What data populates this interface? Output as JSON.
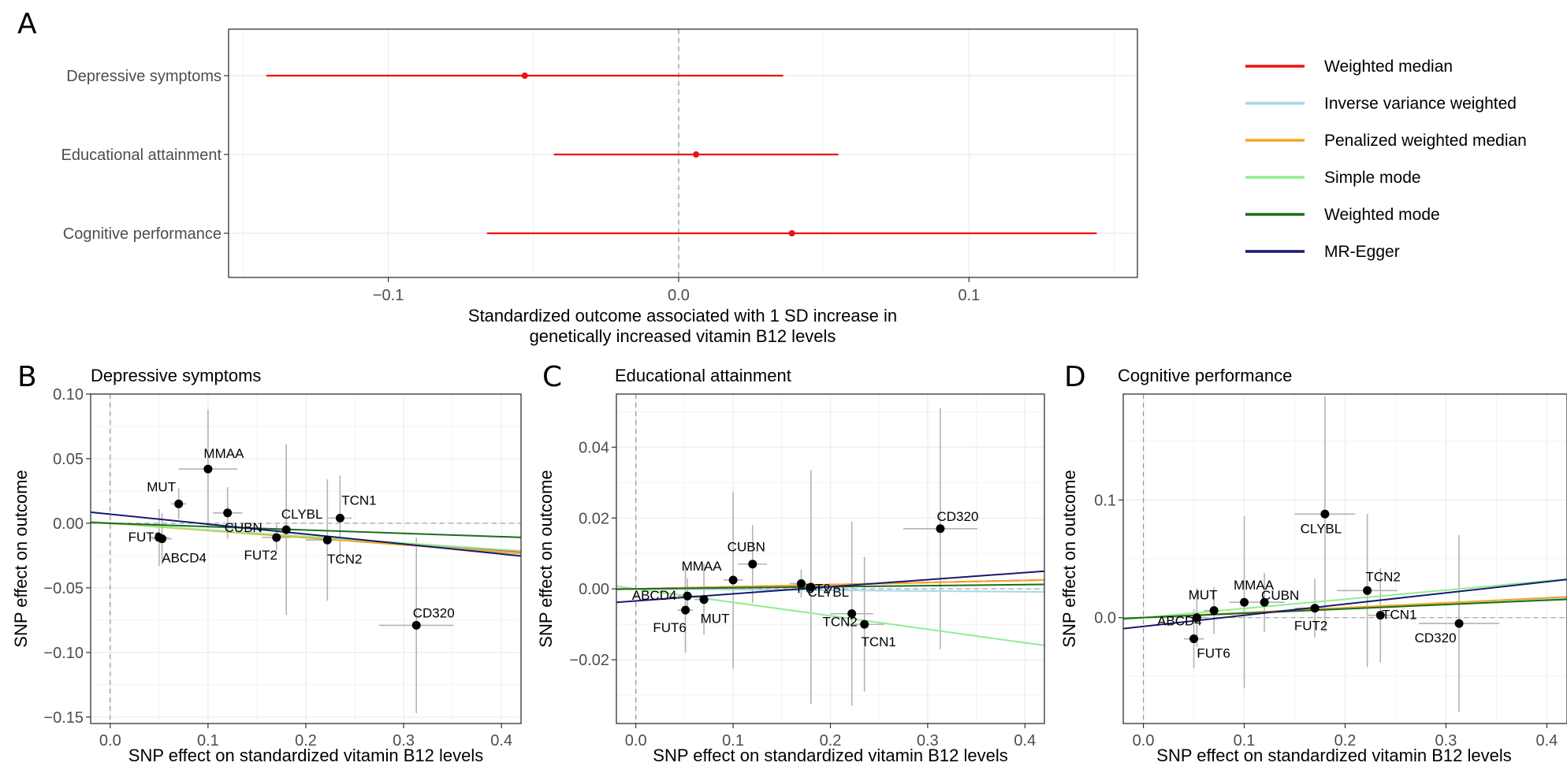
{
  "panel_letters": {
    "a": "A",
    "b": "B",
    "c": "C",
    "d": "D"
  },
  "legend": {
    "items": [
      {
        "key": "wmed",
        "label": "Weighted median",
        "color": "#ee1111"
      },
      {
        "key": "ivw",
        "label": "Inverse variance weighted",
        "color": "#a6d8ea"
      },
      {
        "key": "pwm",
        "label": "Penalized weighted median",
        "color": "#f5a623"
      },
      {
        "key": "smode",
        "label": "Simple mode",
        "color": "#90ee90"
      },
      {
        "key": "wmode",
        "label": "Weighted mode",
        "color": "#1a6e1a"
      },
      {
        "key": "egger",
        "label": "MR-Egger",
        "color": "#191970"
      }
    ]
  },
  "chart_data": [
    {
      "type": "forest",
      "xlabel": "Standardized outcome associated with 1 SD increase in genetically increased vitamin B12 levels",
      "xlim": [
        -0.155,
        0.158
      ],
      "xticks": [
        -0.1,
        0.0,
        0.1
      ],
      "xtick_labels": [
        "−0.1",
        "0.0",
        "0.1"
      ],
      "method": "Weighted median",
      "rows": [
        {
          "label": "Depressive symptoms",
          "estimate": -0.053,
          "lower": -0.142,
          "upper": 0.036
        },
        {
          "label": "Educational attainment",
          "estimate": 0.006,
          "lower": -0.043,
          "upper": 0.055
        },
        {
          "label": "Cognitive performance",
          "estimate": 0.039,
          "lower": -0.066,
          "upper": 0.144
        }
      ]
    },
    {
      "type": "scatter",
      "title": "Depressive symptoms",
      "xlabel": "SNP effect on standardized vitamin B12 levels",
      "ylabel": "SNP effect on outcome",
      "xlim": [
        -0.02,
        0.42
      ],
      "ylim": [
        -0.155,
        0.1
      ],
      "xticks": [
        0.0,
        0.1,
        0.2,
        0.3,
        0.4
      ],
      "xtick_labels": [
        "0.0",
        "0.1",
        "0.2",
        "0.3",
        "0.4"
      ],
      "yticks": [
        0.1,
        0.05,
        0.0,
        -0.05,
        -0.1,
        -0.15
      ],
      "ytick_labels": [
        "0.10",
        "0.05",
        "0.00",
        "−0.05",
        "−0.10",
        "−0.15"
      ],
      "points": [
        {
          "label": "MMAA",
          "x": 0.1,
          "y": 0.042,
          "xerr": 0.03,
          "yerr": 0.046
        },
        {
          "label": "MUT",
          "x": 0.07,
          "y": 0.015,
          "xerr": 0.008,
          "yerr": 0.012
        },
        {
          "label": "CUBN",
          "x": 0.12,
          "y": 0.008,
          "xerr": 0.015,
          "yerr": 0.02
        },
        {
          "label": "FUT6",
          "x": 0.05,
          "y": -0.011,
          "xerr": 0.01,
          "yerr": 0.022
        },
        {
          "label": "ABCD4",
          "x": 0.053,
          "y": -0.012,
          "xerr": 0.01,
          "yerr": 0.02
        },
        {
          "label": "FUT2",
          "x": 0.17,
          "y": -0.011,
          "xerr": 0.015,
          "yerr": 0.01
        },
        {
          "label": "CLYBL",
          "x": 0.18,
          "y": -0.005,
          "xerr": 0.012,
          "yerr": 0.066
        },
        {
          "label": "TCN1",
          "x": 0.235,
          "y": 0.004,
          "xerr": 0.012,
          "yerr": 0.033
        },
        {
          "label": "TCN2",
          "x": 0.222,
          "y": -0.013,
          "xerr": 0.022,
          "yerr": 0.047
        },
        {
          "label": "CD320",
          "x": 0.313,
          "y": -0.079,
          "xerr": 0.038,
          "yerr": 0.068
        }
      ],
      "lines": [
        {
          "method": "Weighted median",
          "slope": -0.053,
          "intercept": 0
        },
        {
          "method": "Inverse variance weighted",
          "slope": -0.055,
          "intercept": 0
        },
        {
          "method": "Penalized weighted median",
          "slope": -0.056,
          "intercept": 0
        },
        {
          "method": "Simple mode",
          "slope": -0.051,
          "intercept": 0
        },
        {
          "method": "Weighted mode",
          "slope": -0.026,
          "intercept": 0
        },
        {
          "method": "MR-Egger",
          "slope": -0.077,
          "intercept": 0.007
        }
      ]
    },
    {
      "type": "scatter",
      "title": "Educational attainment",
      "xlabel": "SNP effect on standardized vitamin B12 levels",
      "ylabel": "SNP effect on outcome",
      "xlim": [
        -0.02,
        0.42
      ],
      "ylim": [
        -0.038,
        0.055
      ],
      "xticks": [
        0.0,
        0.1,
        0.2,
        0.3,
        0.4
      ],
      "xtick_labels": [
        "0.0",
        "0.1",
        "0.2",
        "0.3",
        "0.4"
      ],
      "yticks": [
        0.04,
        0.02,
        0.0,
        -0.02
      ],
      "ytick_labels": [
        "0.04",
        "0.02",
        "0.00",
        "−0.02"
      ],
      "points": [
        {
          "label": "CUBN",
          "x": 0.12,
          "y": 0.007,
          "xerr": 0.015,
          "yerr": 0.011
        },
        {
          "label": "MMAA",
          "x": 0.1,
          "y": 0.0025,
          "xerr": 0.01,
          "yerr": 0.025
        },
        {
          "label": "FUT2",
          "x": 0.17,
          "y": 0.0015,
          "xerr": 0.012,
          "yerr": 0.004
        },
        {
          "label": "ABCD4",
          "x": 0.053,
          "y": -0.002,
          "xerr": 0.01,
          "yerr": 0.005
        },
        {
          "label": "FUT6",
          "x": 0.051,
          "y": -0.006,
          "xerr": 0.008,
          "yerr": 0.012
        },
        {
          "label": "MUT",
          "x": 0.07,
          "y": -0.003,
          "xerr": 0.01,
          "yerr": 0.01
        },
        {
          "label": "CLYBL",
          "x": 0.18,
          "y": 0.0005,
          "xerr": 0.012,
          "yerr": 0.033
        },
        {
          "label": "TCN2",
          "x": 0.222,
          "y": -0.007,
          "xerr": 0.022,
          "yerr": 0.026
        },
        {
          "label": "TCN1",
          "x": 0.235,
          "y": -0.01,
          "xerr": 0.02,
          "yerr": 0.019
        },
        {
          "label": "CD320",
          "x": 0.313,
          "y": 0.017,
          "xerr": 0.038,
          "yerr": 0.034
        }
      ],
      "lines": [
        {
          "method": "Weighted median",
          "slope": 0.006,
          "intercept": 0
        },
        {
          "method": "Inverse variance weighted",
          "slope": -0.002,
          "intercept": 0
        },
        {
          "method": "Penalized weighted median",
          "slope": 0.006,
          "intercept": 0
        },
        {
          "method": "Simple mode",
          "slope": -0.038,
          "intercept": 0
        },
        {
          "method": "Weighted mode",
          "slope": 0.003,
          "intercept": 0
        },
        {
          "method": "MR-Egger",
          "slope": 0.02,
          "intercept": -0.0034
        }
      ]
    },
    {
      "type": "scatter",
      "title": "Cognitive performance",
      "xlabel": "SNP effect on standardized vitamin B12 levels",
      "ylabel": "SNP effect on outcome",
      "xlim": [
        -0.02,
        0.42
      ],
      "ylim": [
        -0.09,
        0.19
      ],
      "xticks": [
        0.0,
        0.1,
        0.2,
        0.3,
        0.4
      ],
      "xtick_labels": [
        "0.0",
        "0.1",
        "0.2",
        "0.3",
        "0.4"
      ],
      "yticks": [
        0.1,
        0.0
      ],
      "ytick_labels": [
        "0.1",
        "0.0"
      ],
      "points": [
        {
          "label": "CLYBL",
          "x": 0.18,
          "y": 0.088,
          "xerr": 0.03,
          "yerr": 0.1
        },
        {
          "label": "MMAA",
          "x": 0.1,
          "y": 0.013,
          "xerr": 0.015,
          "yerr": 0.073
        },
        {
          "label": "MUT",
          "x": 0.07,
          "y": 0.006,
          "xerr": 0.01,
          "yerr": 0.02
        },
        {
          "label": "CUBN",
          "x": 0.12,
          "y": 0.013,
          "xerr": 0.02,
          "yerr": 0.025
        },
        {
          "label": "FUT2",
          "x": 0.17,
          "y": 0.008,
          "xerr": 0.02,
          "yerr": 0.025
        },
        {
          "label": "TCN2",
          "x": 0.222,
          "y": 0.023,
          "xerr": 0.03,
          "yerr": 0.065
        },
        {
          "label": "TCN1",
          "x": 0.235,
          "y": 0.002,
          "xerr": 0.012,
          "yerr": 0.04
        },
        {
          "label": "ABCD4",
          "x": 0.053,
          "y": 0.0,
          "xerr": 0.01,
          "yerr": 0.025
        },
        {
          "label": "FUT6",
          "x": 0.05,
          "y": -0.018,
          "xerr": 0.01,
          "yerr": 0.025
        },
        {
          "label": "CD320",
          "x": 0.313,
          "y": -0.005,
          "xerr": 0.04,
          "yerr": 0.075
        }
      ],
      "lines": [
        {
          "method": "Weighted median",
          "slope": 0.039,
          "intercept": 0
        },
        {
          "method": "Inverse variance weighted",
          "slope": 0.04,
          "intercept": 0
        },
        {
          "method": "Penalized weighted median",
          "slope": 0.042,
          "intercept": 0
        },
        {
          "method": "Simple mode",
          "slope": 0.078,
          "intercept": 0
        },
        {
          "method": "Weighted mode",
          "slope": 0.037,
          "intercept": 0
        },
        {
          "method": "MR-Egger",
          "slope": 0.095,
          "intercept": -0.0075
        }
      ]
    }
  ]
}
